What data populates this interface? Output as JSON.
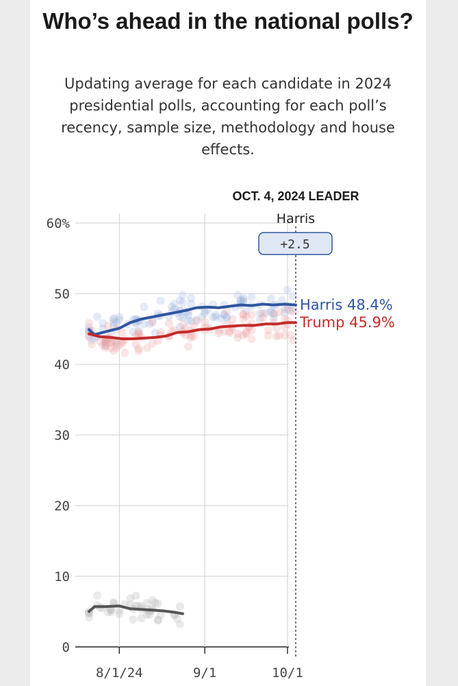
{
  "title": "Who’s ahead in the national polls?",
  "subtitle": "Updating average for each candidate in 2024 presidential polls, accounting for each poll’s recency, sample size, methodology and house effects.",
  "leader": {
    "heading": "OCT. 4, 2024 LEADER",
    "name": "Harris",
    "margin": "+2.5"
  },
  "chart_data": {
    "type": "line",
    "title": "Who’s ahead in the national polls?",
    "ylim": [
      0,
      60
    ],
    "y_ticks": [
      "60%",
      "50",
      "40",
      "30",
      "20",
      "10",
      "0"
    ],
    "y_tick_values": [
      60,
      50,
      40,
      30,
      20,
      10,
      0
    ],
    "x_tick_labels": [
      "8/1/24",
      "9/1",
      "10/1"
    ],
    "x_tick_dates": [
      "2024-08-01",
      "2024-09-01",
      "2024-10-01"
    ],
    "x_range": [
      "2024-07-21",
      "2024-10-04"
    ],
    "grid": true,
    "series": [
      {
        "name": "Harris",
        "end_label": "Harris 48.4%",
        "color": "#2f56a0",
        "points": [
          [
            "2024-07-21",
            44.9
          ],
          [
            "2024-07-23",
            44.2
          ],
          [
            "2024-07-27",
            44.6
          ],
          [
            "2024-08-01",
            45.1
          ],
          [
            "2024-08-05",
            45.9
          ],
          [
            "2024-08-09",
            46.4
          ],
          [
            "2024-08-13",
            46.7
          ],
          [
            "2024-08-17",
            47.0
          ],
          [
            "2024-08-21",
            47.3
          ],
          [
            "2024-08-25",
            47.6
          ],
          [
            "2024-08-29",
            48.0
          ],
          [
            "2024-09-02",
            48.1
          ],
          [
            "2024-09-06",
            48.0
          ],
          [
            "2024-09-10",
            48.2
          ],
          [
            "2024-09-14",
            48.4
          ],
          [
            "2024-09-18",
            48.3
          ],
          [
            "2024-09-22",
            48.5
          ],
          [
            "2024-09-26",
            48.4
          ],
          [
            "2024-09-30",
            48.5
          ],
          [
            "2024-10-04",
            48.4
          ]
        ]
      },
      {
        "name": "Trump",
        "end_label": "Trump 45.9%",
        "color": "#c42a2a",
        "points": [
          [
            "2024-07-21",
            44.3
          ],
          [
            "2024-07-25",
            43.9
          ],
          [
            "2024-07-29",
            43.8
          ],
          [
            "2024-08-02",
            43.6
          ],
          [
            "2024-08-06",
            43.6
          ],
          [
            "2024-08-10",
            43.7
          ],
          [
            "2024-08-14",
            43.8
          ],
          [
            "2024-08-18",
            44.0
          ],
          [
            "2024-08-22",
            44.5
          ],
          [
            "2024-08-26",
            44.6
          ],
          [
            "2024-08-30",
            44.9
          ],
          [
            "2024-09-03",
            45.0
          ],
          [
            "2024-09-07",
            45.3
          ],
          [
            "2024-09-11",
            45.4
          ],
          [
            "2024-09-15",
            45.5
          ],
          [
            "2024-09-19",
            45.5
          ],
          [
            "2024-09-23",
            45.7
          ],
          [
            "2024-09-27",
            45.7
          ],
          [
            "2024-10-01",
            45.9
          ],
          [
            "2024-10-04",
            45.9
          ]
        ]
      },
      {
        "color": "#555555",
        "points": [
          [
            "2024-07-21",
            5.0
          ],
          [
            "2024-07-23",
            5.7
          ],
          [
            "2024-07-27",
            5.7
          ],
          [
            "2024-08-01",
            5.8
          ],
          [
            "2024-08-05",
            5.4
          ],
          [
            "2024-08-09",
            5.3
          ],
          [
            "2024-08-13",
            5.2
          ],
          [
            "2024-08-17",
            5.1
          ],
          [
            "2024-08-21",
            4.9
          ],
          [
            "2024-08-24",
            4.7
          ]
        ]
      }
    ]
  }
}
